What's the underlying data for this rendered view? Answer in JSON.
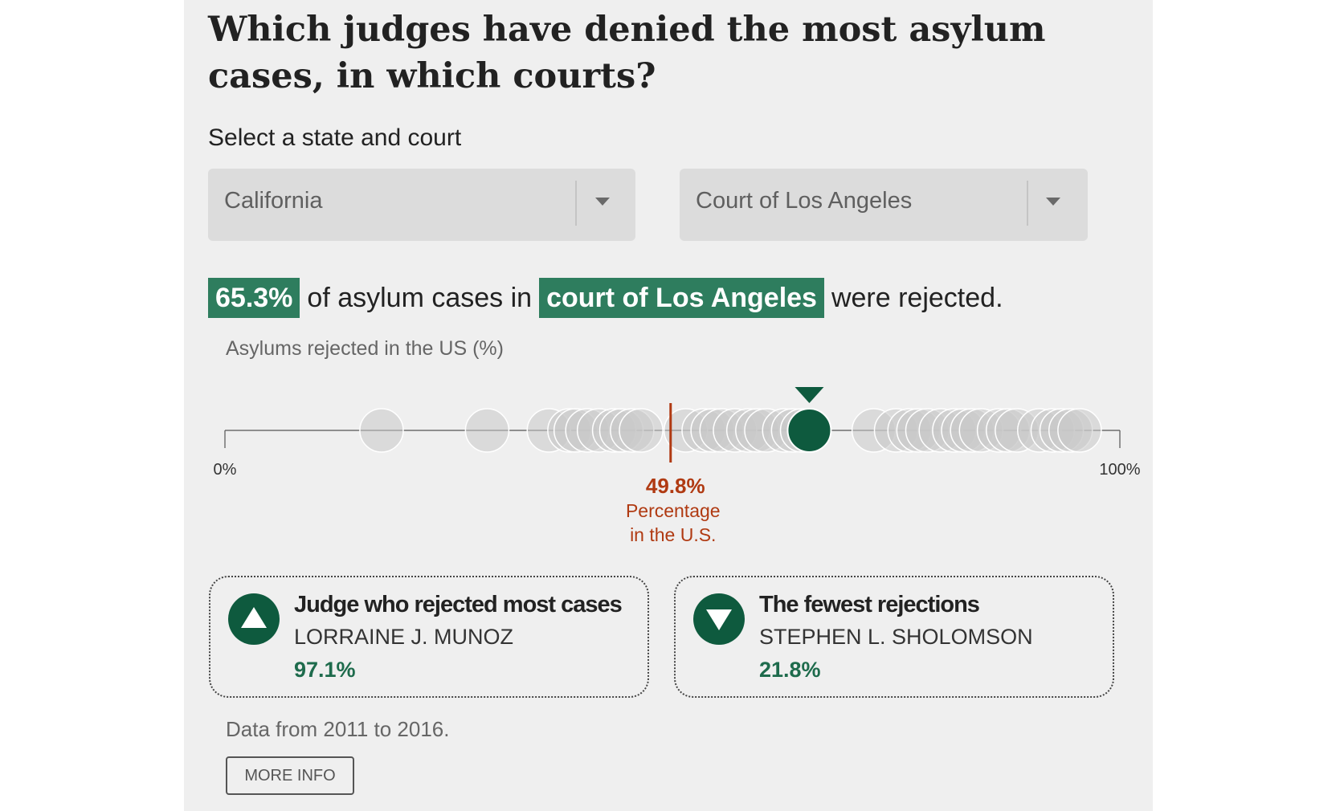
{
  "header": {
    "title": "Which judges have denied the most asylum cases, in which courts?"
  },
  "filters": {
    "label": "Select a state and court",
    "state": {
      "selected": "California",
      "icon": "chevron-down-icon"
    },
    "court": {
      "selected": "Court of Los Angeles",
      "icon": "chevron-down-icon"
    }
  },
  "summary": {
    "percent": "65.3%",
    "text_1": "of asylum cases in",
    "court": "court of Los Angeles",
    "text_2": "were rejected."
  },
  "chart_data": {
    "type": "scatter",
    "title": "Asylums rejected in the US (%)",
    "xlim": [
      0,
      100
    ],
    "tick_labels": [
      "0%",
      "100%"
    ],
    "judge_rejection_rates": [
      17.5,
      29.3,
      36.2,
      38.5,
      39.2,
      40.5,
      41.8,
      43.5,
      44.3,
      45.5,
      46.5,
      51.5,
      53.5,
      54.5,
      55.5,
      57.0,
      58.5,
      59.5,
      60.5,
      62.5,
      63.5,
      64.5,
      72.5,
      75.0,
      76.5,
      77.5,
      78.5,
      80.0,
      81.5,
      82.5,
      83.5,
      84.5,
      86.5,
      87.5,
      88.5,
      91.0,
      92.5,
      93.5,
      94.5,
      95.5
    ],
    "selected_court": {
      "value": 65.3,
      "label": "65.3%"
    },
    "us_reference": {
      "value": 49.8,
      "label": "49.8%",
      "caption_1": "Percentage",
      "caption_2": "in the U.S."
    },
    "colors": {
      "dot": "#c8c8c8",
      "selected": "#0e5a3e",
      "us_line": "#b03a12",
      "axis": "#555555"
    }
  },
  "cards": {
    "most": {
      "title": "Judge who rejected most cases",
      "name": "LORRAINE J. MUNOZ",
      "pct": "97.1%",
      "icon": "triangle-up-icon"
    },
    "fewest": {
      "title": "The fewest rejections",
      "name": "STEPHEN L. SHOLOMSON",
      "pct": "21.8%",
      "icon": "triangle-down-icon"
    }
  },
  "footer": {
    "note": "Data from 2011 to 2016.",
    "button": "MORE INFO"
  }
}
